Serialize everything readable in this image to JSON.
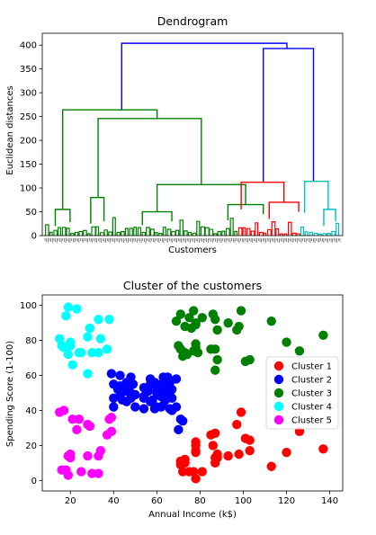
{
  "chart_data": [
    {
      "type": "dendrogram",
      "title": "Dendrogram",
      "xlabel": "Customers",
      "ylabel": "Euclidean distances",
      "ylim": [
        0,
        425
      ],
      "yticks": [
        "0",
        "50",
        "100",
        "150",
        "200",
        "250",
        "300",
        "350",
        "400"
      ],
      "links": [
        {
          "color": "#0000ff",
          "height": 404,
          "left": {
            "x": 0.26,
            "h": 264
          },
          "right": {
            "x": 0.82,
            "h": 393
          }
        },
        {
          "color": "#0000ff",
          "height": 393,
          "left": {
            "x": 0.74,
            "h": 112
          },
          "right": {
            "x": 0.91,
            "h": 114
          }
        },
        {
          "color": "#008000",
          "height": 264,
          "left": {
            "x": 0.06,
            "h": 55
          },
          "right": {
            "x": 0.38,
            "h": 246
          }
        },
        {
          "color": "#008000",
          "height": 246,
          "left": {
            "x": 0.18,
            "h": 80
          },
          "right": {
            "x": 0.53,
            "h": 107
          }
        },
        {
          "color": "#008000",
          "height": 107,
          "left": {
            "x": 0.38,
            "h": 50
          },
          "right": {
            "x": 0.68,
            "h": 65
          }
        },
        {
          "color": "#008000",
          "height": 65,
          "left": {
            "x": 0.62,
            "h": 32
          },
          "right": {
            "x": 0.74,
            "h": 45
          }
        },
        {
          "color": "#008000",
          "height": 80,
          "left": {
            "x": 0.155,
            "h": 25
          },
          "right": {
            "x": 0.2,
            "h": 30
          }
        },
        {
          "color": "#008000",
          "height": 55,
          "left": {
            "x": 0.035,
            "h": 20
          },
          "right": {
            "x": 0.085,
            "h": 28
          }
        },
        {
          "color": "#008000",
          "height": 50,
          "left": {
            "x": 0.33,
            "h": 22
          },
          "right": {
            "x": 0.43,
            "h": 30
          }
        },
        {
          "color": "#ff0000",
          "height": 112,
          "left": {
            "x": 0.665,
            "h": 55
          },
          "right": {
            "x": 0.81,
            "h": 70
          }
        },
        {
          "color": "#ff0000",
          "height": 70,
          "left": {
            "x": 0.76,
            "h": 35
          },
          "right": {
            "x": 0.86,
            "h": 50
          }
        },
        {
          "color": "#00bfbf",
          "height": 114,
          "left": {
            "x": 0.88,
            "h": 48
          },
          "right": {
            "x": 0.96,
            "h": 55
          }
        },
        {
          "color": "#00bfbf",
          "height": 55,
          "left": {
            "x": 0.945,
            "h": 20
          },
          "right": {
            "x": 0.985,
            "h": 30
          }
        }
      ],
      "leaf_clusters": [
        {
          "color": "#008000",
          "from": 0.0,
          "to": 0.655,
          "maxh": 35
        },
        {
          "color": "#ff0000",
          "from": 0.655,
          "to": 0.865,
          "maxh": 30
        },
        {
          "color": "#00bfbf",
          "from": 0.865,
          "to": 1.0,
          "maxh": 30
        }
      ]
    },
    {
      "type": "scatter",
      "title": "Cluster of the customers",
      "xlabel": "Annual Income (k$)",
      "ylabel": "Spending Score (1-100)",
      "xlim": [
        7,
        146
      ],
      "ylim": [
        -6,
        106
      ],
      "xticks": [
        20,
        40,
        60,
        80,
        100,
        120,
        140
      ],
      "yticks": [
        0,
        20,
        40,
        60,
        80,
        100
      ],
      "legend": "center-right",
      "series": [
        {
          "name": "Cluster 1",
          "color": "#ff0000",
          "points": [
            [
              71,
              11
            ],
            [
              71,
              9
            ],
            [
              72,
              5
            ],
            [
              73,
              10
            ],
            [
              73,
              12
            ],
            [
              75,
              5
            ],
            [
              77,
              5
            ],
            [
              78,
              22
            ],
            [
              78,
              20
            ],
            [
              78,
              17
            ],
            [
              78,
              16
            ],
            [
              78,
              1
            ],
            [
              81,
              5
            ],
            [
              85,
              26
            ],
            [
              86,
              20
            ],
            [
              87,
              27
            ],
            [
              87,
              13
            ],
            [
              87,
              10
            ],
            [
              88,
              13
            ],
            [
              88,
              15
            ],
            [
              93,
              14
            ],
            [
              97,
              32
            ],
            [
              98,
              15
            ],
            [
              99,
              39
            ],
            [
              101,
              24
            ],
            [
              103,
              17
            ],
            [
              103,
              23
            ],
            [
              113,
              8
            ],
            [
              120,
              16
            ],
            [
              126,
              28
            ],
            [
              137,
              18
            ]
          ]
        },
        {
          "name": "Cluster 2",
          "color": "#0000ff",
          "points": [
            [
              39,
              61
            ],
            [
              40,
              55
            ],
            [
              40,
              47
            ],
            [
              40,
              42
            ],
            [
              42,
              52
            ],
            [
              43,
              60
            ],
            [
              43,
              54
            ],
            [
              44,
              46
            ],
            [
              46,
              51
            ],
            [
              46,
              56
            ],
            [
              47,
              52
            ],
            [
              48,
              47
            ],
            [
              48,
              59
            ],
            [
              48,
              50
            ],
            [
              49,
              55
            ],
            [
              50,
              42
            ],
            [
              50,
              49
            ],
            [
              54,
              47
            ],
            [
              54,
              53
            ],
            [
              54,
              48
            ],
            [
              54,
              41
            ],
            [
              56,
              51
            ],
            [
              57,
              58
            ],
            [
              57,
              55
            ],
            [
              58,
              46
            ],
            [
              59,
              41
            ],
            [
              60,
              50
            ],
            [
              60,
              52
            ],
            [
              60,
              42
            ],
            [
              61,
              49
            ],
            [
              62,
              48
            ],
            [
              62,
              55
            ],
            [
              62,
              42
            ],
            [
              63,
              50
            ],
            [
              63,
              54
            ],
            [
              63,
              43
            ],
            [
              64,
              52
            ],
            [
              64,
              46
            ],
            [
              65,
              59
            ],
            [
              65,
              48
            ],
            [
              66,
              41
            ],
            [
              66,
              50
            ],
            [
              66,
              56
            ],
            [
              67,
              40
            ],
            [
              67,
              47
            ],
            [
              69,
              58
            ],
            [
              69,
              42
            ],
            [
              70,
              29
            ],
            [
              71,
              35
            ],
            [
              72,
              34
            ],
            [
              63,
              59
            ],
            [
              57,
              45
            ],
            [
              59,
              56
            ],
            [
              67,
              52
            ],
            [
              43,
              48
            ],
            [
              46,
              45
            ]
          ]
        },
        {
          "name": "Cluster 3",
          "color": "#008000",
          "points": [
            [
              69,
              91
            ],
            [
              70,
              77
            ],
            [
              71,
              95
            ],
            [
              71,
              75
            ],
            [
              72,
              71
            ],
            [
              73,
              88
            ],
            [
              73,
              73
            ],
            [
              74,
              72
            ],
            [
              75,
              93
            ],
            [
              76,
              87
            ],
            [
              77,
              97
            ],
            [
              77,
              74
            ],
            [
              78,
              90
            ],
            [
              78,
              76
            ],
            [
              78,
              89
            ],
            [
              78,
              78
            ],
            [
              79,
              73
            ],
            [
              81,
              93
            ],
            [
              85,
              75
            ],
            [
              86,
              95
            ],
            [
              87,
              63
            ],
            [
              87,
              75
            ],
            [
              87,
              92
            ],
            [
              88,
              69
            ],
            [
              88,
              86
            ],
            [
              93,
              90
            ],
            [
              97,
              86
            ],
            [
              98,
              88
            ],
            [
              99,
              97
            ],
            [
              101,
              68
            ],
            [
              103,
              69
            ],
            [
              113,
              91
            ],
            [
              120,
              79
            ],
            [
              126,
              74
            ],
            [
              137,
              83
            ]
          ]
        },
        {
          "name": "Cluster 4",
          "color": "#00ffff",
          "points": [
            [
              15,
              81
            ],
            [
              16,
              77
            ],
            [
              17,
              76
            ],
            [
              18,
              94
            ],
            [
              19,
              72
            ],
            [
              19,
              99
            ],
            [
              20,
              77
            ],
            [
              20,
              79
            ],
            [
              21,
              66
            ],
            [
              23,
              98
            ],
            [
              24,
              73
            ],
            [
              25,
              73
            ],
            [
              28,
              82
            ],
            [
              28,
              61
            ],
            [
              29,
              87
            ],
            [
              30,
              73
            ],
            [
              33,
              92
            ],
            [
              33,
              73
            ],
            [
              34,
              81
            ],
            [
              37,
              75
            ],
            [
              38,
              92
            ]
          ]
        },
        {
          "name": "Cluster 5",
          "color": "#ff00ff",
          "points": [
            [
              15,
              39
            ],
            [
              16,
              6
            ],
            [
              17,
              40
            ],
            [
              18,
              6
            ],
            [
              19,
              3
            ],
            [
              19,
              14
            ],
            [
              20,
              15
            ],
            [
              20,
              13
            ],
            [
              21,
              35
            ],
            [
              23,
              29
            ],
            [
              24,
              35
            ],
            [
              25,
              5
            ],
            [
              28,
              14
            ],
            [
              28,
              32
            ],
            [
              29,
              31
            ],
            [
              30,
              4
            ],
            [
              33,
              4
            ],
            [
              33,
              14
            ],
            [
              34,
              17
            ],
            [
              37,
              26
            ],
            [
              38,
              35
            ],
            [
              39,
              36
            ],
            [
              39,
              28
            ]
          ]
        }
      ]
    }
  ]
}
